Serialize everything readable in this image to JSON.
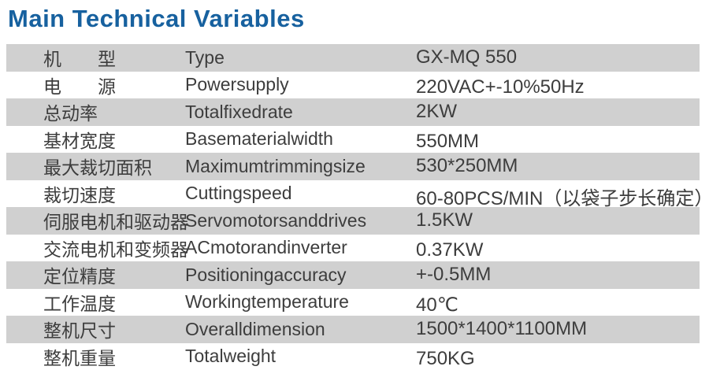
{
  "title": "Main Technical Variables",
  "colors": {
    "title_blue": "#17619f",
    "row_gray": "#d0d0d0",
    "text": "#3d3d3d"
  },
  "table": {
    "rows": [
      {
        "zh": "机　　型",
        "en": "Type",
        "value": "GX-MQ 550"
      },
      {
        "zh": "电　　源",
        "en": "Powersupply",
        "value": "220VAC+-10%50Hz"
      },
      {
        "zh": "总动率",
        "en": "Totalfixedrate",
        "value": "2KW"
      },
      {
        "zh": "基材宽度",
        "en": "Basematerialwidth",
        "value": "550MM"
      },
      {
        "zh": "最大裁切面积",
        "en": "Maximumtrimmingsize",
        "value": "530*250MM"
      },
      {
        "zh": "裁切速度",
        "en": "Cuttingspeed",
        "value": "60-80PCS/MIN（以袋子步长确定）"
      },
      {
        "zh": "伺服电机和驱动器",
        "en": "Servomotorsanddrives",
        "value": "1.5KW"
      },
      {
        "zh": "交流电机和变频器",
        "en": "ACmotorandinverter",
        "value": "0.37KW"
      },
      {
        "zh": "定位精度",
        "en": "Positioningaccuracy",
        "value": "+-0.5MM"
      },
      {
        "zh": "工作温度",
        "en": "Workingtemperature",
        "value": "40℃"
      },
      {
        "zh": "整机尺寸",
        "en": "Overalldimension",
        "value": "1500*1400*1100MM"
      },
      {
        "zh": "整机重量",
        "en": "Totalweight",
        "value": "750KG"
      }
    ]
  }
}
